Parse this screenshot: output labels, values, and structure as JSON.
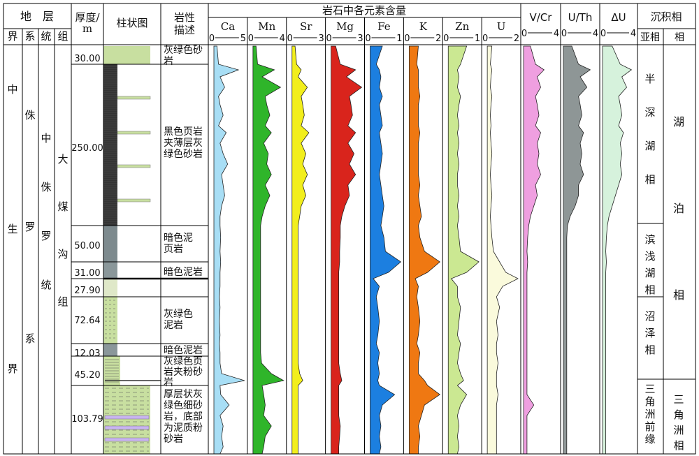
{
  "header": {
    "stratum": "地　层",
    "units": [
      "界",
      "系",
      "统",
      "组"
    ],
    "thickness": "厚度/\nm",
    "column": "柱状图",
    "lithology": "岩性\n描述",
    "elements_title": "岩石中各元素含量",
    "facies": "沉积相",
    "subfacies": "亚相",
    "facies_unit": "相"
  },
  "strata": {
    "erathem": "中生界",
    "system": "侏罗系",
    "series": "中侏罗统",
    "formation": "大煤沟组"
  },
  "layers": [
    {
      "thickness": "30.00",
      "lithology": "灰绿色砂岩",
      "fill": "#c8dfa0"
    },
    {
      "thickness": "250.00",
      "lithology": "黑色页岩夹薄层灰绿色砂岩",
      "fill": "#333333"
    },
    {
      "thickness": "50.00",
      "lithology": "暗色泥页岩",
      "fill": "#7d8a8e"
    },
    {
      "thickness": "31.00",
      "lithology": "暗色泥岩",
      "fill": "#8a979a"
    },
    {
      "thickness": "27.90",
      "lithology": "",
      "fill": "#c8dfa0"
    },
    {
      "thickness": "72.64",
      "lithology": "灰绿色泥岩",
      "fill": "#c8dfa0"
    },
    {
      "thickness": "12.03",
      "lithology": "暗色泥岩",
      "fill": "#8a979a"
    },
    {
      "thickness": "45.20",
      "lithology": "灰绿色页岩夹粉砂岩",
      "fill": "#c8dfa0"
    },
    {
      "thickness": "103.79",
      "lithology": "厚层状灰绿色细砂岩，底部为泥质粉砂岩",
      "fill": "#c8dfa0"
    }
  ],
  "element_columns": [
    {
      "name": "Ca",
      "scale_min": "0",
      "scale_max": "5",
      "color": "#a8def5"
    },
    {
      "name": "Mn",
      "scale_min": "0",
      "scale_max": "4",
      "color": "#2fb52a"
    },
    {
      "name": "Sr",
      "scale_min": "0",
      "scale_max": "3",
      "color": "#f2ee1c"
    },
    {
      "name": "Mg",
      "scale_min": "0",
      "scale_max": "3",
      "color": "#d9241c"
    },
    {
      "name": "Fe",
      "scale_min": "0",
      "scale_max": "1",
      "color": "#1c7fe0"
    },
    {
      "name": "K",
      "scale_min": "0",
      "scale_max": "2",
      "color": "#ef7812"
    },
    {
      "name": "Zn",
      "scale_min": "0",
      "scale_max": "1",
      "color": "#cbe892"
    },
    {
      "name": "U",
      "scale_min": "0",
      "scale_max": "2",
      "color": "#fafadc"
    }
  ],
  "ratio_columns": [
    {
      "name": "V/Cr",
      "scale_min": "0",
      "scale_max": "4",
      "color": "#ef9fe0"
    },
    {
      "name": "U/Th",
      "scale_min": "0",
      "scale_max": "4",
      "color": "#8e9696"
    },
    {
      "name": "ΔU",
      "scale_min": "0",
      "scale_max": "4",
      "color": "#d6f2dc"
    }
  ],
  "subfacies": [
    "半深湖相",
    "滨浅湖相",
    "沼泽相",
    "三角洲前缘"
  ],
  "facies": [
    "湖泊相",
    "三角洲相"
  ]
}
